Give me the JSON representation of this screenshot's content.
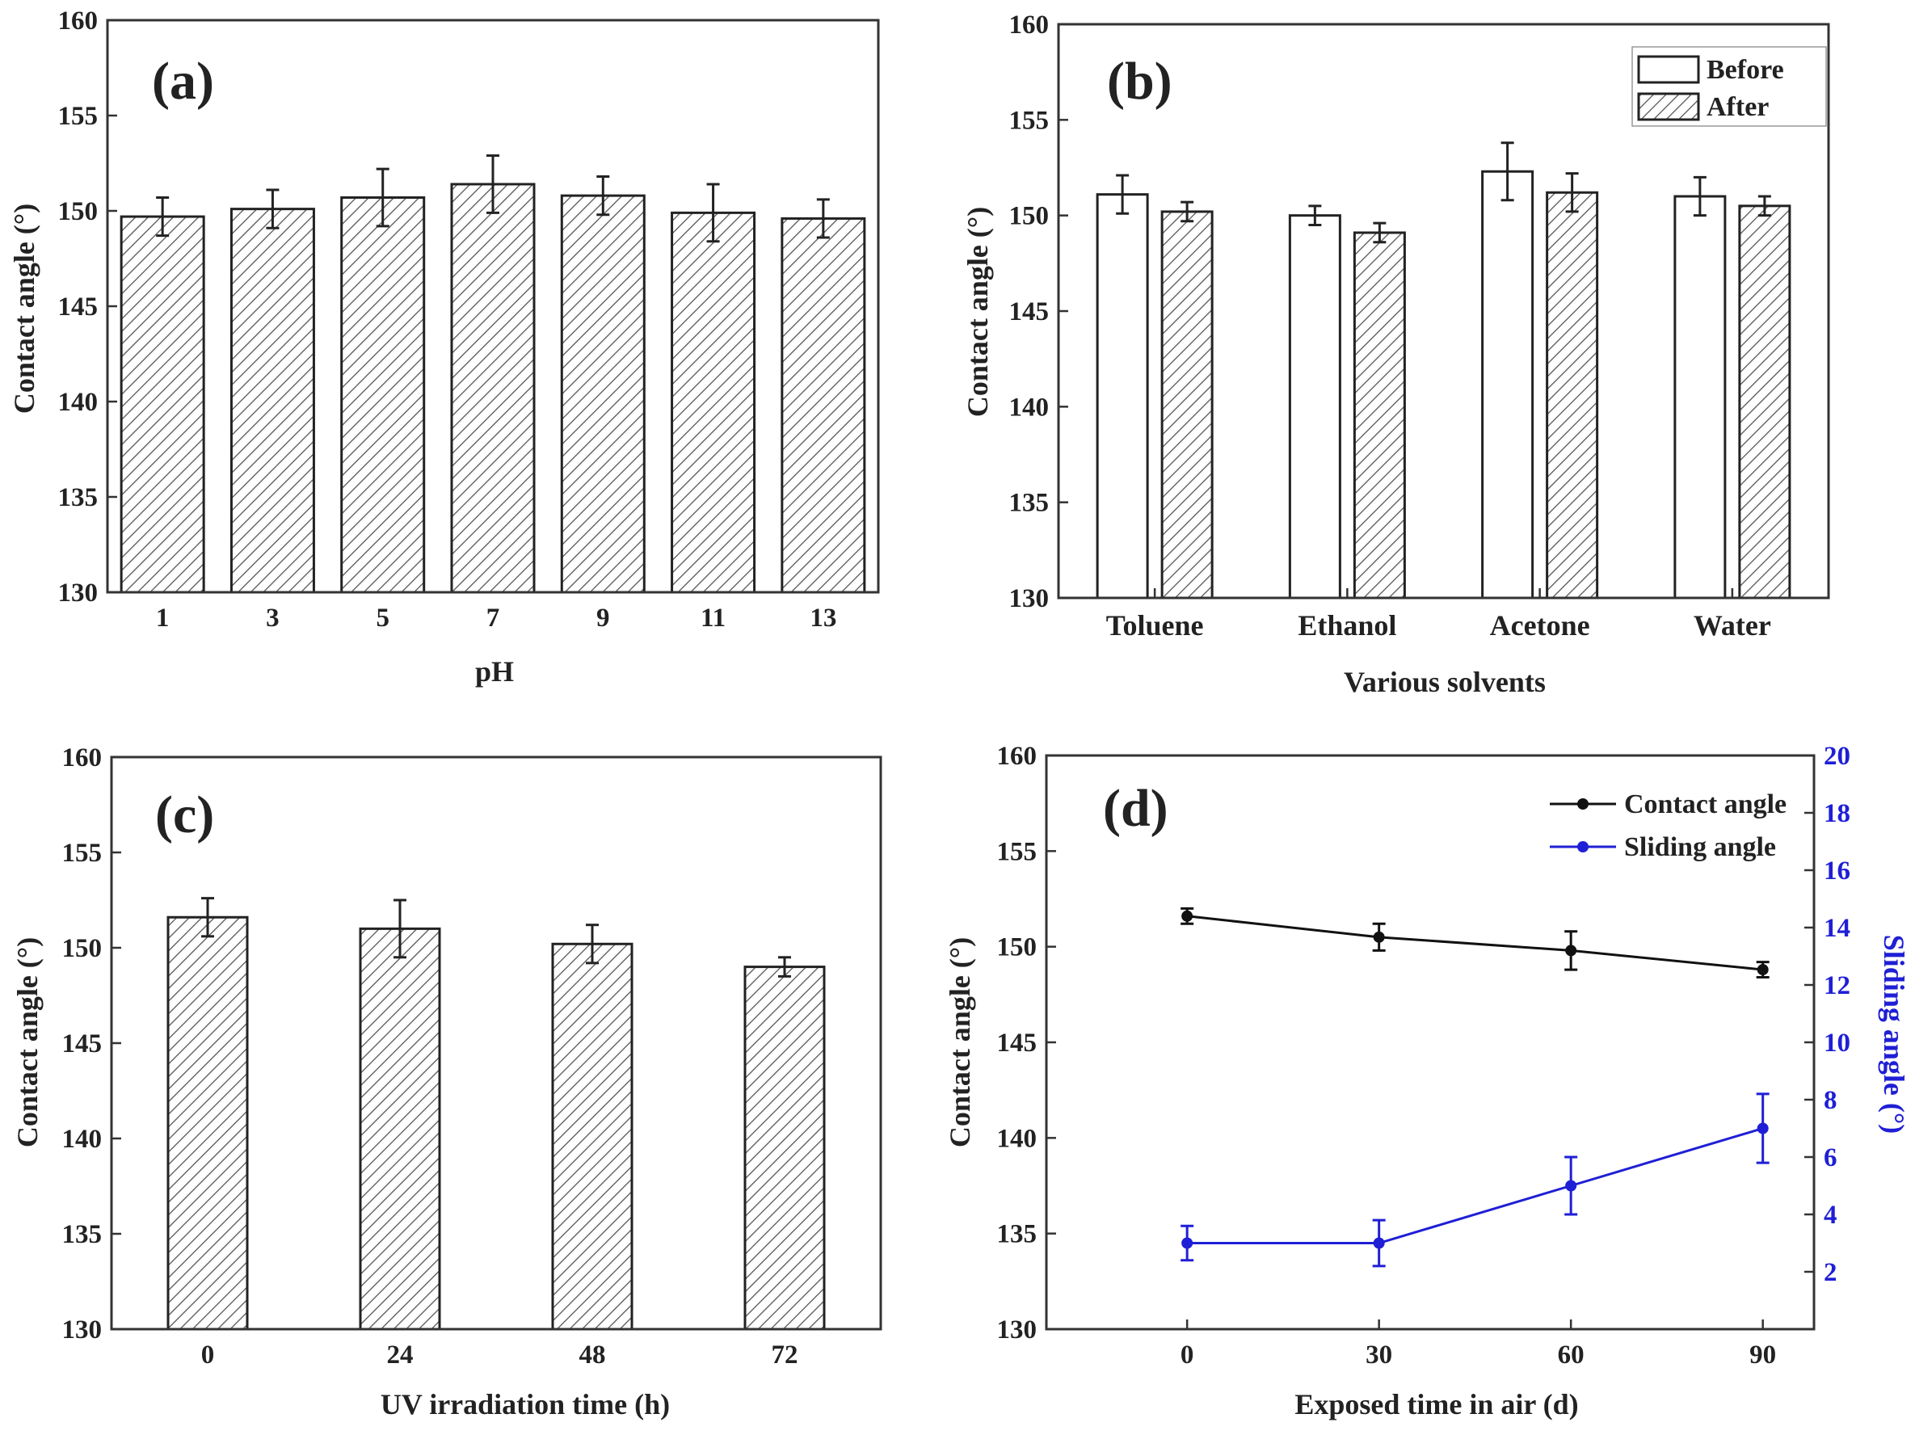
{
  "colors": {
    "axis": "#333333",
    "bar_stroke": "#222222",
    "hatch": "#555555",
    "contact_line": "#111111",
    "sliding_line": "#1f1fd6"
  },
  "chart_data": [
    {
      "panel": "(a)",
      "type": "bar",
      "xlabel": "pH",
      "ylabel": "Contact angle (°)",
      "ylim": [
        130,
        160
      ],
      "yticks": [
        130,
        135,
        140,
        145,
        150,
        155,
        160
      ],
      "categories": [
        "1",
        "3",
        "5",
        "7",
        "9",
        "11",
        "13"
      ],
      "series": [
        {
          "style": "hatched",
          "values": [
            149.7,
            150.1,
            150.7,
            151.4,
            150.8,
            149.9,
            149.6
          ],
          "errors": [
            1.0,
            1.0,
            1.5,
            1.5,
            1.0,
            1.5,
            1.0
          ]
        }
      ],
      "grid": false
    },
    {
      "panel": "(b)",
      "type": "bar",
      "xlabel": "Various solvents",
      "ylabel": "Contact angle (°)",
      "ylim": [
        130,
        160
      ],
      "yticks": [
        130,
        135,
        140,
        145,
        150,
        155,
        160
      ],
      "categories": [
        "Toluene",
        "Ethanol",
        "Acetone",
        "Water"
      ],
      "series": [
        {
          "name": "Before",
          "style": "open",
          "values": [
            151.1,
            150.0,
            152.3,
            151.0
          ],
          "errors": [
            1.0,
            0.5,
            1.5,
            1.0
          ]
        },
        {
          "name": "After",
          "style": "hatched",
          "values": [
            150.2,
            149.1,
            151.2,
            150.5
          ],
          "errors": [
            0.5,
            0.5,
            1.0,
            0.5
          ]
        }
      ],
      "legend": "top-right",
      "grid": false
    },
    {
      "panel": "(c)",
      "type": "bar",
      "xlabel": "UV irradiation time (h)",
      "ylabel": "Contact angle (°)",
      "ylim": [
        130,
        160
      ],
      "yticks": [
        130,
        135,
        140,
        145,
        150,
        155,
        160
      ],
      "categories": [
        "0",
        "24",
        "48",
        "72"
      ],
      "series": [
        {
          "style": "hatched",
          "values": [
            151.6,
            151.0,
            150.2,
            149.0
          ],
          "errors": [
            1.0,
            1.5,
            1.0,
            0.5
          ]
        }
      ],
      "grid": false
    },
    {
      "panel": "(d)",
      "type": "line",
      "xlabel": "Exposed time in air (d)",
      "ylabel": "Contact angle (°)",
      "y2label": "Sliding angle (°)",
      "xlim": [
        -22,
        98
      ],
      "xticks": [
        0,
        30,
        60,
        90
      ],
      "ylim": [
        130,
        160
      ],
      "yticks": [
        130,
        135,
        140,
        145,
        150,
        155,
        160
      ],
      "y2lim": [
        0,
        20
      ],
      "y2ticks": [
        2,
        4,
        6,
        8,
        10,
        12,
        14,
        16,
        18,
        20
      ],
      "x": [
        0,
        30,
        60,
        90
      ],
      "series": [
        {
          "name": "Contact angle",
          "axis": "left",
          "values": [
            151.6,
            150.5,
            149.8,
            148.8
          ],
          "errors": [
            0.4,
            0.7,
            1.0,
            0.4
          ]
        },
        {
          "name": "Sliding angle",
          "axis": "right",
          "values": [
            3.0,
            3.0,
            5.0,
            7.0
          ],
          "errors": [
            0.6,
            0.8,
            1.0,
            1.2
          ]
        }
      ],
      "legend": "top-right",
      "grid": false
    }
  ]
}
